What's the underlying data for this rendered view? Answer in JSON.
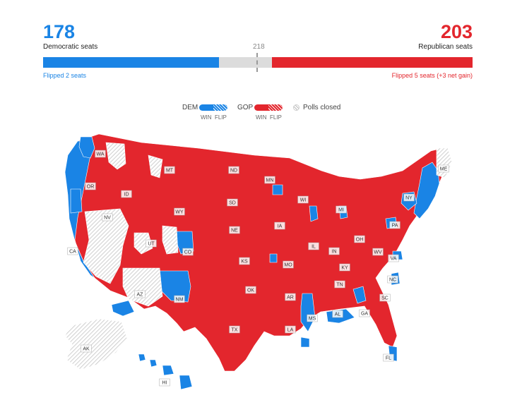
{
  "summary": {
    "dem": {
      "seats": "178",
      "label": "Democratic seats",
      "flipped": "Flipped 2 seats",
      "color": "#1a84e5"
    },
    "gop": {
      "seats": "203",
      "label": "Republican seats",
      "flipped": "Flipped 5 seats (+3 net gain)",
      "color": "#e3262d"
    },
    "majority": "218",
    "total_seats": 435
  },
  "legend": {
    "dem_label": "DEM",
    "gop_label": "GOP",
    "win_label": "WIN",
    "flip_label": "FLIP",
    "closed_label": "Polls closed",
    "dem_color": "#1a84e5",
    "gop_color": "#e3262d",
    "closed_color": "#cfcfcf"
  },
  "map": {
    "state_labels": [
      "WA",
      "OR",
      "CA",
      "NV",
      "ID",
      "MT",
      "WY",
      "UT",
      "AZ",
      "CO",
      "NM",
      "ND",
      "SD",
      "NE",
      "KS",
      "OK",
      "TX",
      "MN",
      "IA",
      "MO",
      "AR",
      "LA",
      "WI",
      "IL",
      "MI",
      "IN",
      "OH",
      "KY",
      "TN",
      "MS",
      "AL",
      "GA",
      "FL",
      "SC",
      "NC",
      "VA",
      "WV",
      "PA",
      "NY",
      "ME",
      "AK",
      "HI"
    ]
  }
}
